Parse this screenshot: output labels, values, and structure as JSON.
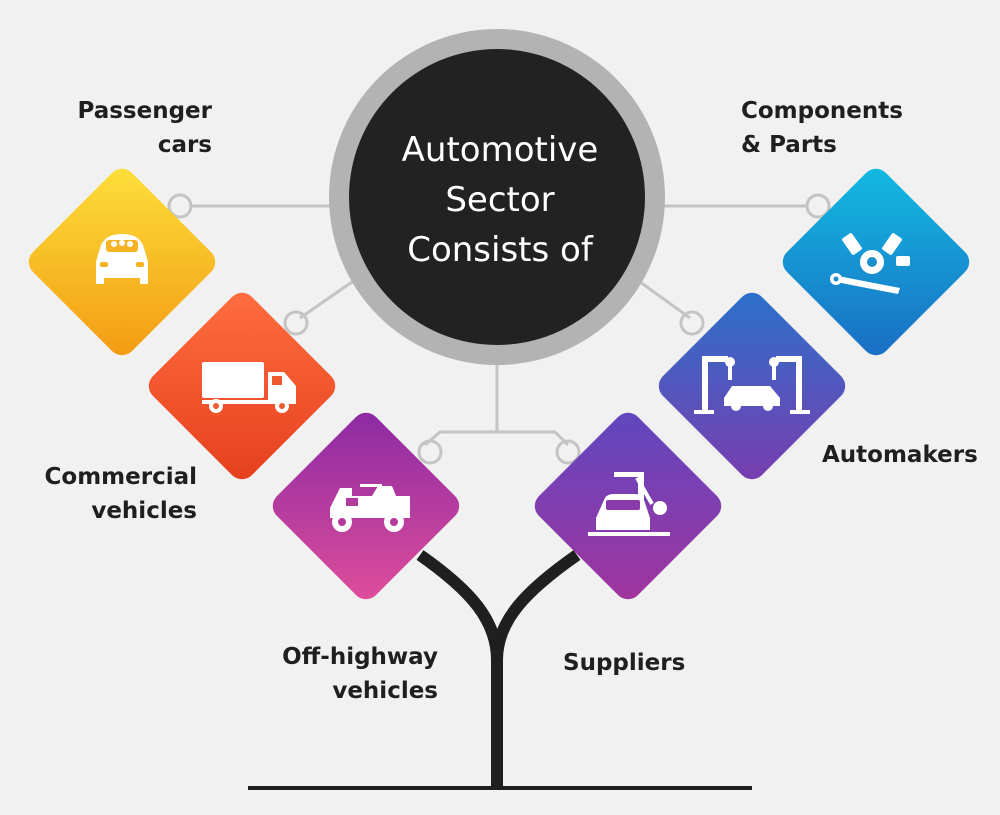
{
  "center": {
    "lines": [
      "Automotive",
      "Sector",
      "Consists of"
    ]
  },
  "items": [
    {
      "id": "passenger-cars",
      "lines": [
        "Passenger",
        "cars"
      ],
      "icon": "passenger-car-icon",
      "gradient": [
        "#fdd835",
        "#f39c12"
      ]
    },
    {
      "id": "commercial-vehicles",
      "lines": [
        "Commercial",
        "vehicles"
      ],
      "icon": "truck-icon",
      "gradient": [
        "#ff6b3d",
        "#e8401c"
      ]
    },
    {
      "id": "off-highway-vehicles",
      "lines": [
        "Off-highway",
        "vehicles"
      ],
      "icon": "jeep-icon",
      "gradient": [
        "#8e2aa0",
        "#d6489e"
      ]
    },
    {
      "id": "suppliers",
      "lines": [
        "Suppliers"
      ],
      "icon": "assembly-line-icon",
      "gradient": [
        "#6a3fb8",
        "#a63aa8"
      ]
    },
    {
      "id": "automakers",
      "lines": [
        "Automakers"
      ],
      "icon": "robotic-arms-icon",
      "gradient": [
        "#2f6fc8",
        "#6f3fae"
      ]
    },
    {
      "id": "components-parts",
      "lines": [
        "Components",
        "& Parts"
      ],
      "icon": "engine-wrench-icon",
      "gradient": [
        "#0fb3d8",
        "#1e78c8"
      ]
    }
  ],
  "colors": {
    "background": "#f1f1f1",
    "center_fill": "#222222",
    "center_ring": "#b3b3b3",
    "connector": "#c4c4c4",
    "trunk": "#1f1f1f"
  }
}
